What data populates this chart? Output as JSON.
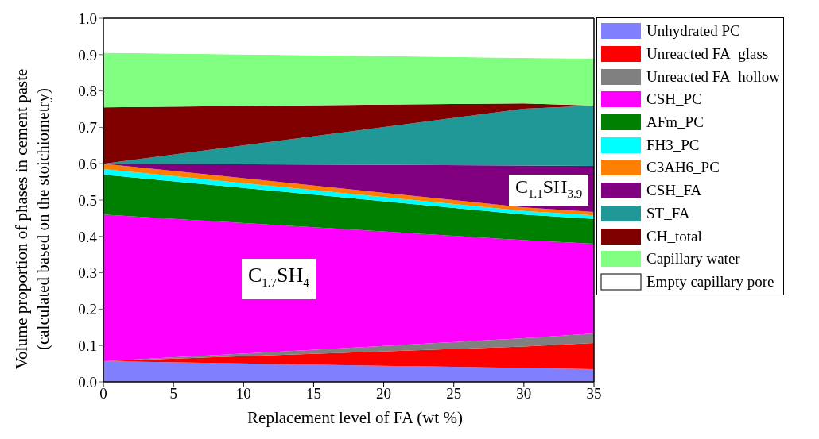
{
  "chart_data": {
    "type": "area",
    "stacked": true,
    "xlabel": "Replacement level of FA (wt %)",
    "ylabel": "Volume proportion of phases in cement paste\n(calculated based on the stoichiometry)",
    "x": [
      0,
      30,
      35
    ],
    "series": [
      {
        "name": "Unhydrated PC",
        "color": "#8080ff",
        "values": [
          0.057,
          0.038,
          0.035
        ]
      },
      {
        "name": "Unreacted FA_glass",
        "color": "#ff0000",
        "values": [
          0,
          0.059,
          0.072
        ]
      },
      {
        "name": "Unreacted FA_hollow",
        "color": "#808080",
        "values": [
          0,
          0.023,
          0.026
        ]
      },
      {
        "name": "CSH_PC",
        "color": "#ff00ff",
        "values": [
          0.403,
          0.27,
          0.247
        ]
      },
      {
        "name": "AFm_PC",
        "color": "#008000",
        "values": [
          0.11,
          0.07,
          0.068
        ]
      },
      {
        "name": "FH3_PC",
        "color": "#00ffff",
        "values": [
          0.015,
          0.01,
          0.01
        ]
      },
      {
        "name": "C3AH6_PC",
        "color": "#ff8000",
        "values": [
          0.015,
          0.01,
          0.009
        ]
      },
      {
        "name": "CSH_FA",
        "color": "#800080",
        "values": [
          0,
          0.115,
          0.127
        ]
      },
      {
        "name": "ST_FA",
        "color": "#209898",
        "values": [
          0,
          0.156,
          0.166
        ]
      },
      {
        "name": "CH_total",
        "color": "#800000",
        "values": [
          0.155,
          0.015,
          0
        ]
      },
      {
        "name": "Capillary water",
        "color": "#80ff80",
        "values": [
          0.15,
          0.125,
          0.129
        ]
      },
      {
        "name": "Empty capillary pore",
        "color": "#ffffff",
        "values": [
          0.095,
          0.109,
          0.111
        ]
      }
    ],
    "xlim": [
      0,
      35
    ],
    "xticks": [
      0,
      5,
      10,
      15,
      20,
      25,
      30,
      35
    ],
    "ylim": [
      0,
      1
    ],
    "yticks": [
      {
        "value": 0,
        "label": "0.0"
      },
      0.1,
      0.2,
      0.3,
      0.4,
      0.5,
      0.6,
      0.7,
      0.8,
      0.9,
      {
        "value": 1,
        "label": "1.0"
      }
    ],
    "annotations": [
      "C$_{1.7}$SH$_{4}$",
      "C$_{1.1}$SH$_{3.9}$"
    ],
    "legend": "right"
  }
}
